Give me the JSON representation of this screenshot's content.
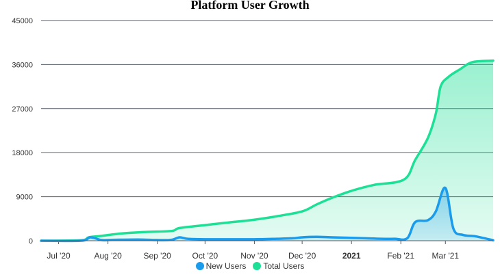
{
  "chart_data": {
    "type": "area",
    "title": "Platform User Growth",
    "xlabel": "",
    "ylabel": "",
    "x_start": "2020-06-20",
    "x_end": "2021-03-31",
    "x_ticks": [
      {
        "label": "Jul '20",
        "date": "2020-07-01",
        "bold": false
      },
      {
        "label": "Aug '20",
        "date": "2020-08-01",
        "bold": false
      },
      {
        "label": "Sep '20",
        "date": "2020-09-01",
        "bold": false
      },
      {
        "label": "Oct '20",
        "date": "2020-10-01",
        "bold": false
      },
      {
        "label": "Nov '20",
        "date": "2020-11-01",
        "bold": false
      },
      {
        "label": "Dec '20",
        "date": "2020-12-01",
        "bold": false
      },
      {
        "label": "2021",
        "date": "2021-01-01",
        "bold": true
      },
      {
        "label": "Feb '21",
        "date": "2021-02-01",
        "bold": false
      },
      {
        "label": "Mar '21",
        "date": "2021-03-01",
        "bold": false
      }
    ],
    "ylim": [
      0,
      45000
    ],
    "y_ticks": [
      0,
      9000,
      18000,
      27000,
      36000,
      45000
    ],
    "grid": true,
    "legend_position": "bottom-center",
    "series": [
      {
        "name": "New Users",
        "color": "#1a9bec",
        "points": [
          [
            "2020-06-20",
            0
          ],
          [
            "2020-07-15",
            0
          ],
          [
            "2020-07-21",
            700
          ],
          [
            "2020-07-28",
            150
          ],
          [
            "2020-08-05",
            200
          ],
          [
            "2020-08-20",
            250
          ],
          [
            "2020-09-01",
            150
          ],
          [
            "2020-09-10",
            200
          ],
          [
            "2020-09-15",
            700
          ],
          [
            "2020-09-20",
            400
          ],
          [
            "2020-10-01",
            300
          ],
          [
            "2020-10-15",
            300
          ],
          [
            "2020-11-01",
            300
          ],
          [
            "2020-11-15",
            400
          ],
          [
            "2020-11-25",
            500
          ],
          [
            "2020-12-01",
            700
          ],
          [
            "2020-12-10",
            800
          ],
          [
            "2020-12-20",
            700
          ],
          [
            "2021-01-01",
            600
          ],
          [
            "2021-01-10",
            500
          ],
          [
            "2021-01-20",
            400
          ],
          [
            "2021-01-28",
            400
          ],
          [
            "2021-02-05",
            500
          ],
          [
            "2021-02-10",
            3800
          ],
          [
            "2021-02-18",
            4200
          ],
          [
            "2021-02-23",
            6000
          ],
          [
            "2021-03-01",
            10800
          ],
          [
            "2021-03-06",
            2500
          ],
          [
            "2021-03-12",
            1200
          ],
          [
            "2021-03-20",
            900
          ],
          [
            "2021-03-31",
            100
          ]
        ]
      },
      {
        "name": "Total Users",
        "color": "#1ddf96",
        "points": [
          [
            "2020-06-20",
            0
          ],
          [
            "2020-07-15",
            100
          ],
          [
            "2020-07-20",
            700
          ],
          [
            "2020-07-28",
            1000
          ],
          [
            "2020-08-10",
            1500
          ],
          [
            "2020-08-25",
            1800
          ],
          [
            "2020-09-10",
            2000
          ],
          [
            "2020-09-15",
            2600
          ],
          [
            "2020-10-01",
            3200
          ],
          [
            "2020-10-15",
            3700
          ],
          [
            "2020-11-01",
            4300
          ],
          [
            "2020-11-15",
            5000
          ],
          [
            "2020-12-01",
            6000
          ],
          [
            "2020-12-10",
            7400
          ],
          [
            "2020-12-20",
            8800
          ],
          [
            "2021-01-01",
            10200
          ],
          [
            "2021-01-15",
            11400
          ],
          [
            "2021-02-03",
            12500
          ],
          [
            "2021-02-10",
            16500
          ],
          [
            "2021-02-18",
            21000
          ],
          [
            "2021-02-23",
            26000
          ],
          [
            "2021-02-26",
            31500
          ],
          [
            "2021-03-03",
            33500
          ],
          [
            "2021-03-10",
            35000
          ],
          [
            "2021-03-18",
            36500
          ],
          [
            "2021-03-31",
            36800
          ]
        ]
      }
    ]
  }
}
